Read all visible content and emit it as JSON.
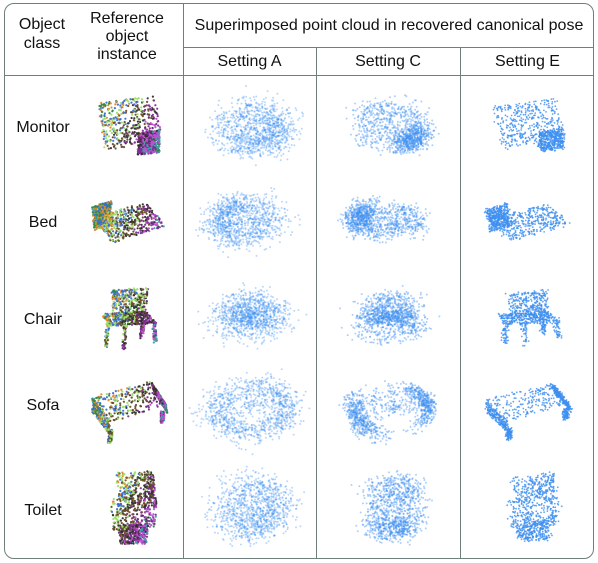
{
  "header": {
    "object_class": "Object\nclass",
    "reference": "Reference\nobject\ninstance",
    "superimposed": "Superimposed point cloud in recovered canonical pose",
    "settings": [
      "Setting A",
      "Setting C",
      "Setting E"
    ]
  },
  "rows": [
    {
      "label": "Monitor",
      "shape": "monitor"
    },
    {
      "label": "Bed",
      "shape": "bed"
    },
    {
      "label": "Chair",
      "shape": "chair"
    },
    {
      "label": "Sofa",
      "shape": "sofa"
    },
    {
      "label": "Toilet",
      "shape": "toilet"
    }
  ],
  "colors": {
    "border": "#6f7f7c",
    "point_blue": "#3d8ef0",
    "reference_palette": [
      "#2f2f2f",
      "#7a2f8f",
      "#c24fd0",
      "#3aa0a8",
      "#2f8a3f",
      "#e08a2a",
      "#3c6fd6",
      "#9adf6a",
      "#6a4f2a"
    ]
  }
}
